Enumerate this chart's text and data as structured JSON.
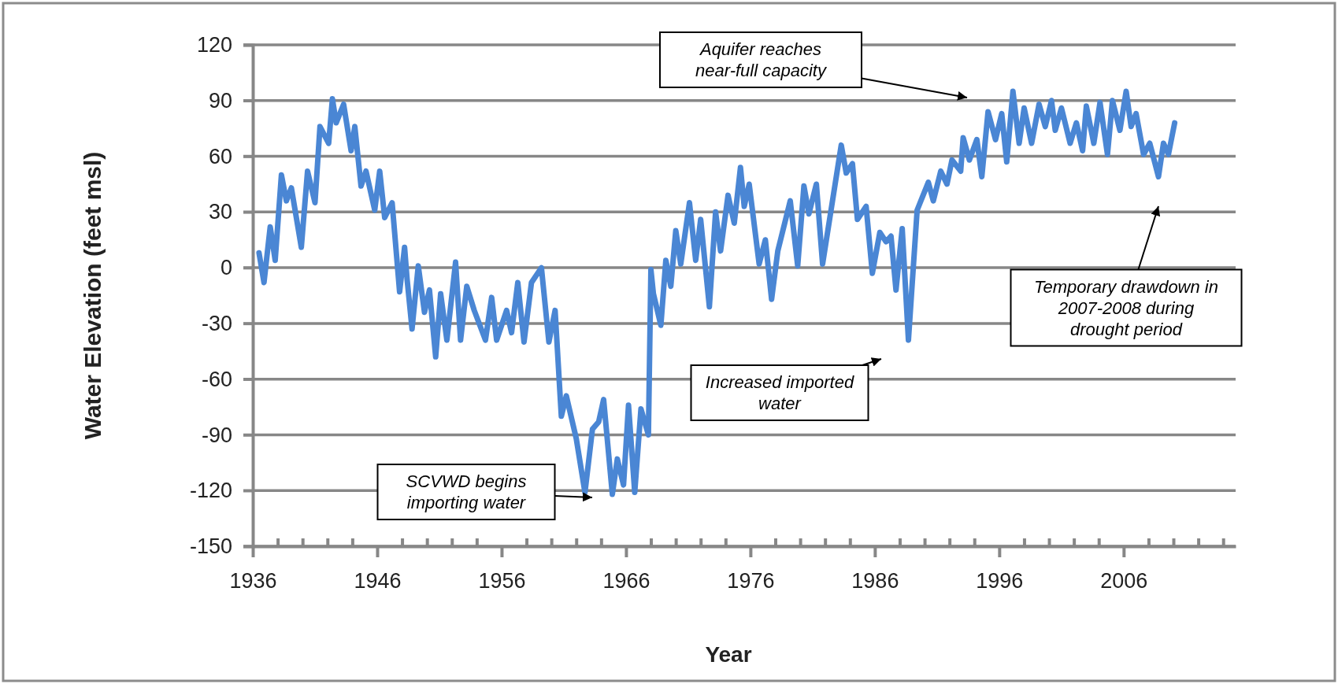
{
  "chart_data": {
    "type": "line",
    "xlabel": "Year",
    "ylabel": "Water Elevation (feet msl)",
    "xlim": [
      1936,
      2015
    ],
    "ylim": [
      -150,
      120
    ],
    "xticks": [
      1936,
      {
        "value": 1938,
        "label": null
      },
      {
        "value": 1940,
        "label": null
      },
      {
        "value": 1942,
        "label": null
      },
      {
        "value": 1944,
        "label": null
      },
      1946,
      {
        "value": 1948,
        "label": null
      },
      {
        "value": 1950,
        "label": null
      },
      {
        "value": 1952,
        "label": null
      },
      {
        "value": 1954,
        "label": null
      },
      1956,
      {
        "value": 1958,
        "label": null
      },
      {
        "value": 1960,
        "label": null
      },
      {
        "value": 1962,
        "label": null
      },
      {
        "value": 1964,
        "label": null
      },
      1966,
      {
        "value": 1968,
        "label": null
      },
      {
        "value": 1970,
        "label": null
      },
      {
        "value": 1972,
        "label": null
      },
      {
        "value": 1974,
        "label": null
      },
      1976,
      {
        "value": 1978,
        "label": null
      },
      {
        "value": 1980,
        "label": null
      },
      {
        "value": 1982,
        "label": null
      },
      {
        "value": 1984,
        "label": null
      },
      1986,
      {
        "value": 1988,
        "label": null
      },
      {
        "value": 1990,
        "label": null
      },
      {
        "value": 1992,
        "label": null
      },
      {
        "value": 1994,
        "label": null
      },
      1996,
      {
        "value": 1998,
        "label": null
      },
      {
        "value": 2000,
        "label": null
      },
      {
        "value": 2002,
        "label": null
      },
      {
        "value": 2004,
        "label": null
      },
      2006,
      {
        "value": 2008,
        "label": null
      },
      {
        "value": 2010,
        "label": null
      },
      {
        "value": 2012,
        "label": null
      },
      {
        "value": 2014,
        "label": null
      }
    ],
    "yticks": [
      -150,
      -120,
      -90,
      -60,
      -30,
      0,
      30,
      60,
      90,
      120
    ],
    "grid": "y",
    "marker": "none",
    "line_style": "solid",
    "series": [
      {
        "color": "#4a86d4",
        "x": [
          1936.5,
          1936.9,
          1937.4,
          1937.8,
          1938.3,
          1938.7,
          1939.1,
          1939.9,
          1940.4,
          1941.0,
          1941.4,
          1942.1,
          1942.4,
          1942.7,
          1943.3,
          1943.9,
          1944.2,
          1944.7,
          1945.1,
          1945.8,
          1946.2,
          1946.6,
          1947.2,
          1947.8,
          1948.2,
          1948.4,
          1948.8,
          1949.3,
          1949.8,
          1950.2,
          1950.7,
          1951.1,
          1951.6,
          1952.3,
          1952.7,
          1953.2,
          1953.8,
          1954.7,
          1955.2,
          1955.6,
          1956.4,
          1956.8,
          1957.3,
          1957.8,
          1958.4,
          1959.2,
          1959.8,
          1960.3,
          1960.8,
          1961.2,
          1962.0,
          1962.7,
          1963.3,
          1963.8,
          1964.2,
          1964.9,
          1965.3,
          1965.8,
          1966.2,
          1966.7,
          1967.2,
          1967.8,
          1968.0,
          1968.2,
          1968.8,
          1969.2,
          1969.6,
          1970.0,
          1970.4,
          1971.1,
          1971.6,
          1972.0,
          1972.7,
          1973.2,
          1973.6,
          1974.2,
          1974.7,
          1975.2,
          1975.5,
          1975.9,
          1976.7,
          1977.2,
          1977.7,
          1978.2,
          1979.2,
          1979.8,
          1980.3,
          1980.7,
          1981.3,
          1981.8,
          1983.3,
          1983.7,
          1984.2,
          1984.6,
          1985.3,
          1985.8,
          1986.4,
          1986.9,
          1987.3,
          1987.7,
          1988.2,
          1988.7,
          1989.4,
          1990.3,
          1990.7,
          1991.3,
          1991.8,
          1992.2,
          1992.9,
          1993.1,
          1993.6,
          1994.2,
          1994.6,
          1995.1,
          1995.7,
          1996.2,
          1996.6,
          1997.1,
          1997.6,
          1998.0,
          1998.6,
          1999.2,
          1999.7,
          2000.2,
          2000.5,
          2001.0,
          2001.7,
          2002.2,
          2002.7,
          2003.0,
          2003.6,
          2004.1,
          2004.7,
          2005.1,
          2005.7,
          2006.2,
          2006.6,
          2007.0,
          2007.6,
          2008.1,
          2008.8,
          2009.2,
          2009.6,
          2010.1
        ],
        "values": [
          8,
          -8,
          22,
          4,
          50,
          36,
          43,
          11,
          52,
          35,
          76,
          67,
          91,
          78,
          88,
          63,
          76,
          44,
          52,
          31,
          52,
          27,
          35,
          -13,
          11,
          -6,
          -33,
          1,
          -24,
          -12,
          -48,
          -14,
          -39,
          3,
          -39,
          -10,
          -23,
          -39,
          -16,
          -39,
          -23,
          -35,
          -8,
          -40,
          -8,
          0,
          -40,
          -23,
          -80,
          -69,
          -92,
          -121,
          -87,
          -83,
          -71,
          -122,
          -103,
          -117,
          -74,
          -121,
          -76,
          -90,
          -1,
          -14,
          -31,
          4,
          -10,
          20,
          2,
          35,
          4,
          26,
          -21,
          30,
          9,
          39,
          24,
          54,
          33,
          45,
          2,
          15,
          -17,
          9,
          36,
          1,
          44,
          29,
          45,
          2,
          66,
          51,
          56,
          26,
          33,
          -3,
          19,
          14,
          17,
          -12,
          21,
          -39,
          31,
          46,
          36,
          52,
          45,
          58,
          52,
          70,
          58,
          69,
          49,
          84,
          69,
          83,
          57,
          95,
          67,
          86,
          67,
          88,
          76,
          90,
          74,
          86,
          67,
          78,
          63,
          87,
          67,
          89,
          61,
          90,
          74,
          95,
          76,
          83,
          61,
          67,
          49,
          67,
          61,
          78
        ]
      }
    ],
    "annotations": [
      "SCVWD begins importing water",
      "Aquifer reaches near-full capacity",
      "Increased imported water",
      "Temporary drawdown in 2007-2008 during drought period"
    ]
  }
}
